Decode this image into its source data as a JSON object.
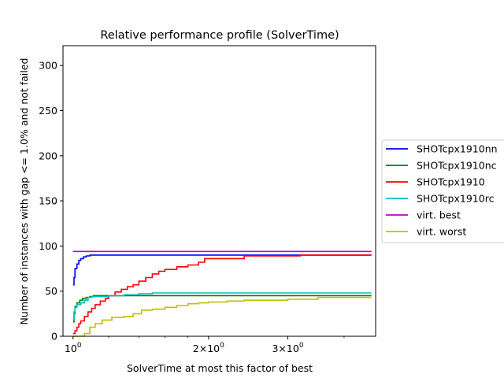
{
  "chart_data": {
    "type": "line",
    "title": "Relative performance profile (SolverTime)",
    "xlabel": "SolverTime at most this factor of best",
    "ylabel": "Number of instances with gap <= 1.0% and not failed",
    "x_scale": "log",
    "xlim": [
      0.95,
      4.7
    ],
    "ylim": [
      0,
      322
    ],
    "x_ticks": [
      {
        "value": 1,
        "label": "10^0",
        "base": "10",
        "exp": "0"
      },
      {
        "value": 2,
        "label": "2×10^0",
        "base": "2×10",
        "exp": "0"
      },
      {
        "value": 3,
        "label": "3×10^0",
        "base": "3×10",
        "exp": "0"
      }
    ],
    "y_ticks": [
      0,
      50,
      100,
      150,
      200,
      250,
      300
    ],
    "grid": false,
    "legend": "outside right",
    "series": [
      {
        "name": "SHOTcpx1910nn",
        "color": "#0000ff",
        "step": true,
        "points": [
          [
            1.0,
            57
          ],
          [
            1.005,
            65
          ],
          [
            1.01,
            75
          ],
          [
            1.02,
            80
          ],
          [
            1.03,
            84
          ],
          [
            1.04,
            86
          ],
          [
            1.055,
            88
          ],
          [
            1.07,
            89
          ],
          [
            1.09,
            90
          ],
          [
            4.6,
            90
          ]
        ]
      },
      {
        "name": "SHOTcpx1910nc",
        "color": "#008000",
        "step": true,
        "points": [
          [
            1.0,
            16
          ],
          [
            1.005,
            25
          ],
          [
            1.01,
            33
          ],
          [
            1.02,
            37
          ],
          [
            1.035,
            40
          ],
          [
            1.05,
            42
          ],
          [
            1.07,
            43
          ],
          [
            1.09,
            44
          ],
          [
            1.11,
            45
          ],
          [
            4.6,
            45
          ]
        ]
      },
      {
        "name": "SHOTcpx1910",
        "color": "#ff0000",
        "step": true,
        "points": [
          [
            1.0,
            3
          ],
          [
            1.01,
            6
          ],
          [
            1.02,
            10
          ],
          [
            1.03,
            14
          ],
          [
            1.04,
            17
          ],
          [
            1.06,
            22
          ],
          [
            1.08,
            27
          ],
          [
            1.1,
            31
          ],
          [
            1.12,
            35
          ],
          [
            1.15,
            39
          ],
          [
            1.18,
            42
          ],
          [
            1.2,
            45
          ],
          [
            1.24,
            49
          ],
          [
            1.28,
            52
          ],
          [
            1.32,
            55
          ],
          [
            1.36,
            57
          ],
          [
            1.4,
            61
          ],
          [
            1.45,
            65
          ],
          [
            1.5,
            69
          ],
          [
            1.55,
            72
          ],
          [
            1.6,
            74
          ],
          [
            1.7,
            77
          ],
          [
            1.8,
            79
          ],
          [
            1.9,
            82
          ],
          [
            1.96,
            86
          ],
          [
            2.05,
            86
          ],
          [
            2.2,
            86
          ],
          [
            2.4,
            89
          ],
          [
            2.8,
            89
          ],
          [
            3.2,
            90
          ],
          [
            4.6,
            90
          ]
        ]
      },
      {
        "name": "SHOTcpx1910rc",
        "color": "#00bfbf",
        "step": true,
        "points": [
          [
            1.0,
            19
          ],
          [
            1.005,
            27
          ],
          [
            1.01,
            32
          ],
          [
            1.02,
            35
          ],
          [
            1.04,
            37
          ],
          [
            1.06,
            40
          ],
          [
            1.08,
            43
          ],
          [
            1.1,
            44
          ],
          [
            1.2,
            45
          ],
          [
            1.3,
            46
          ],
          [
            1.4,
            47
          ],
          [
            1.5,
            48
          ],
          [
            4.6,
            48
          ]
        ]
      },
      {
        "name": "virt. best",
        "color": "#bf00bf",
        "step": true,
        "points": [
          [
            1.0,
            94
          ],
          [
            4.6,
            94
          ]
        ]
      },
      {
        "name": "virt. worst",
        "color": "#bfbf00",
        "step": true,
        "points": [
          [
            1.0,
            0
          ],
          [
            1.04,
            0
          ],
          [
            1.06,
            3
          ],
          [
            1.09,
            10
          ],
          [
            1.12,
            14
          ],
          [
            1.16,
            18
          ],
          [
            1.22,
            21
          ],
          [
            1.3,
            22
          ],
          [
            1.36,
            25
          ],
          [
            1.42,
            29
          ],
          [
            1.5,
            30
          ],
          [
            1.6,
            32
          ],
          [
            1.7,
            34
          ],
          [
            1.8,
            36
          ],
          [
            1.9,
            37
          ],
          [
            2.0,
            38
          ],
          [
            2.2,
            39
          ],
          [
            2.4,
            40
          ],
          [
            3.0,
            41
          ],
          [
            3.5,
            43
          ],
          [
            4.6,
            43
          ]
        ]
      }
    ]
  }
}
